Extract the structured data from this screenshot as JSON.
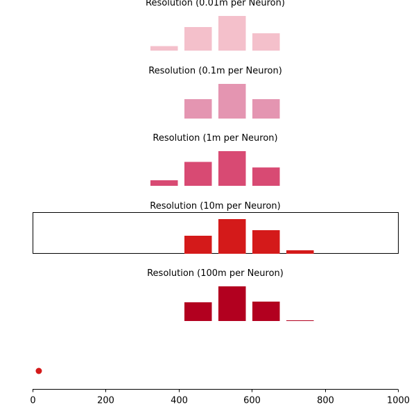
{
  "chart_data": {
    "type": "bar",
    "xlim": [
      0,
      1000
    ],
    "x_ticks": [
      "0",
      "200",
      "400",
      "600",
      "800",
      "1000"
    ],
    "x_tick_values": [
      0,
      200,
      400,
      600,
      800,
      1000
    ],
    "bar_width": 75,
    "panels": [
      {
        "title": "Resolution (0.01m per Neuron)",
        "color": "#f4c0cb",
        "x": [
          360,
          453,
          546,
          639
        ],
        "values": [
          0.13,
          0.68,
          1.0,
          0.5
        ],
        "framed": false
      },
      {
        "title": "Resolution (0.1m per Neuron)",
        "color": "#e495b1",
        "x": [
          453,
          546,
          639
        ],
        "values": [
          0.56,
          1.0,
          0.56
        ],
        "framed": false
      },
      {
        "title": "Resolution (1m per Neuron)",
        "color": "#d84a73",
        "x": [
          360,
          453,
          546,
          639
        ],
        "values": [
          0.16,
          0.69,
          1.0,
          0.53
        ],
        "framed": false
      },
      {
        "title": "Resolution (10m per Neuron)",
        "color": "#d41a1a",
        "x": [
          453,
          546,
          639,
          732
        ],
        "values": [
          0.52,
          1.0,
          0.68,
          0.1
        ],
        "framed": true
      },
      {
        "title": "Resolution (100m per Neuron)",
        "color": "#b2001f",
        "x": [
          453,
          546,
          639,
          732
        ],
        "values": [
          0.54,
          1.0,
          0.56,
          0.02
        ],
        "framed": false
      }
    ],
    "marker": {
      "x": 17,
      "color": "#d41a1a"
    }
  }
}
